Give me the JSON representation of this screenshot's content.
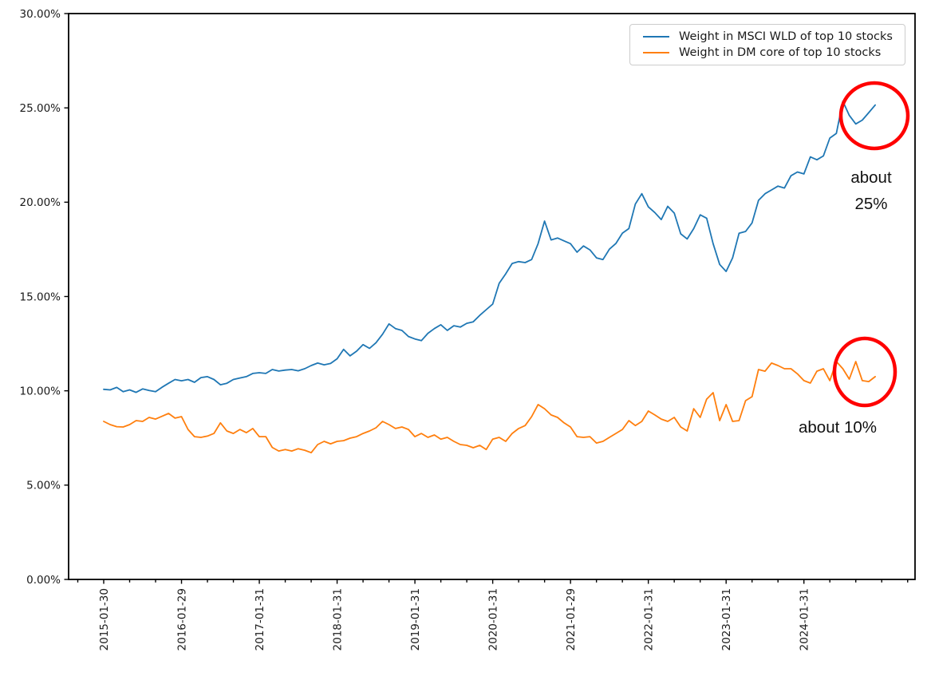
{
  "chart_data": {
    "type": "line",
    "title": "",
    "xlabel": "",
    "ylabel": "",
    "ylim": [
      0,
      30
    ],
    "grid": false,
    "legend_position": "upper right",
    "y_tick_labels": [
      "0.00%",
      "5.00%",
      "10.00%",
      "15.00%",
      "20.00%",
      "25.00%",
      "30.00%"
    ],
    "x_tick_labels": [
      "2015-01-30",
      "2016-01-29",
      "2017-01-31",
      "2018-01-31",
      "2019-01-31",
      "2020-01-31",
      "2021-01-29",
      "2022-01-31",
      "2023-01-31",
      "2024-01-31"
    ],
    "months": [
      "2015-01",
      "2015-02",
      "2015-03",
      "2015-04",
      "2015-05",
      "2015-06",
      "2015-07",
      "2015-08",
      "2015-09",
      "2015-10",
      "2015-11",
      "2015-12",
      "2016-01",
      "2016-02",
      "2016-03",
      "2016-04",
      "2016-05",
      "2016-06",
      "2016-07",
      "2016-08",
      "2016-09",
      "2016-10",
      "2016-11",
      "2016-12",
      "2017-01",
      "2017-02",
      "2017-03",
      "2017-04",
      "2017-05",
      "2017-06",
      "2017-07",
      "2017-08",
      "2017-09",
      "2017-10",
      "2017-11",
      "2017-12",
      "2018-01",
      "2018-02",
      "2018-03",
      "2018-04",
      "2018-05",
      "2018-06",
      "2018-07",
      "2018-08",
      "2018-09",
      "2018-10",
      "2018-11",
      "2018-12",
      "2019-01",
      "2019-02",
      "2019-03",
      "2019-04",
      "2019-05",
      "2019-06",
      "2019-07",
      "2019-08",
      "2019-09",
      "2019-10",
      "2019-11",
      "2019-12",
      "2020-01",
      "2020-02",
      "2020-03",
      "2020-04",
      "2020-05",
      "2020-06",
      "2020-07",
      "2020-08",
      "2020-09",
      "2020-10",
      "2020-11",
      "2020-12",
      "2021-01",
      "2021-02",
      "2021-03",
      "2021-04",
      "2021-05",
      "2021-06",
      "2021-07",
      "2021-08",
      "2021-09",
      "2021-10",
      "2021-11",
      "2021-12",
      "2022-01",
      "2022-02",
      "2022-03",
      "2022-04",
      "2022-05",
      "2022-06",
      "2022-07",
      "2022-08",
      "2022-09",
      "2022-10",
      "2022-11",
      "2022-12",
      "2023-01",
      "2023-02",
      "2023-03",
      "2023-04",
      "2023-05",
      "2023-06",
      "2023-07",
      "2023-08",
      "2023-09",
      "2023-10",
      "2023-11",
      "2023-12",
      "2024-01",
      "2024-02",
      "2024-03",
      "2024-04",
      "2024-05",
      "2024-06",
      "2024-07",
      "2024-08",
      "2024-09",
      "2024-10",
      "2024-11",
      "2024-12"
    ],
    "series": [
      {
        "name": "Weight in MSCI WLD of top 10 stocks",
        "color": "#1f77b4",
        "values": [
          10.08,
          10.05,
          10.18,
          9.95,
          10.05,
          9.92,
          10.1,
          10.02,
          9.95,
          10.19,
          10.4,
          10.6,
          10.53,
          10.6,
          10.45,
          10.7,
          10.75,
          10.6,
          10.32,
          10.4,
          10.6,
          10.68,
          10.75,
          10.92,
          10.96,
          10.92,
          11.13,
          11.05,
          11.1,
          11.13,
          11.06,
          11.17,
          11.34,
          11.47,
          11.38,
          11.45,
          11.7,
          12.2,
          11.85,
          12.1,
          12.45,
          12.25,
          12.55,
          13.0,
          13.55,
          13.3,
          13.2,
          12.88,
          12.75,
          12.66,
          13.05,
          13.3,
          13.5,
          13.2,
          13.45,
          13.38,
          13.58,
          13.66,
          14.0,
          14.3,
          14.6,
          15.7,
          16.2,
          16.75,
          16.85,
          16.8,
          16.96,
          17.8,
          19.0,
          18.0,
          18.1,
          17.95,
          17.8,
          17.35,
          17.68,
          17.47,
          17.05,
          16.96,
          17.51,
          17.81,
          18.36,
          18.6,
          19.9,
          20.45,
          19.75,
          19.45,
          19.08,
          19.78,
          19.42,
          18.32,
          18.05,
          18.6,
          19.33,
          19.15,
          17.8,
          16.7,
          16.33,
          17.05,
          18.35,
          18.45,
          18.9,
          20.1,
          20.45,
          20.65,
          20.85,
          20.75,
          21.4,
          21.6,
          21.5,
          22.4,
          22.25,
          22.45,
          23.4,
          23.65,
          25.35,
          24.6,
          24.15,
          24.35,
          24.75,
          25.15
        ]
      },
      {
        "name": "Weight in DM core of top 10 stocks",
        "color": "#ff7f0e",
        "values": [
          8.38,
          8.21,
          8.1,
          8.08,
          8.21,
          8.42,
          8.38,
          8.59,
          8.5,
          8.65,
          8.8,
          8.55,
          8.63,
          7.95,
          7.57,
          7.53,
          7.6,
          7.74,
          8.3,
          7.87,
          7.74,
          7.95,
          7.78,
          8.0,
          7.57,
          7.57,
          7.0,
          6.81,
          6.89,
          6.81,
          6.93,
          6.85,
          6.72,
          7.15,
          7.32,
          7.19,
          7.32,
          7.36,
          7.49,
          7.57,
          7.74,
          7.87,
          8.04,
          8.38,
          8.21,
          8.0,
          8.08,
          7.95,
          7.57,
          7.74,
          7.53,
          7.66,
          7.44,
          7.53,
          7.32,
          7.15,
          7.11,
          6.98,
          7.11,
          6.89,
          7.44,
          7.53,
          7.32,
          7.74,
          8.0,
          8.16,
          8.63,
          9.27,
          9.05,
          8.72,
          8.59,
          8.3,
          8.08,
          7.57,
          7.53,
          7.57,
          7.23,
          7.32,
          7.53,
          7.74,
          7.95,
          8.42,
          8.16,
          8.38,
          8.93,
          8.72,
          8.5,
          8.38,
          8.59,
          8.08,
          7.87,
          9.05,
          8.59,
          9.56,
          9.9,
          8.42,
          9.27,
          8.38,
          8.42,
          9.48,
          9.69,
          11.13,
          11.04,
          11.47,
          11.34,
          11.17,
          11.17,
          10.9,
          10.54,
          10.41,
          11.04,
          11.17,
          10.54,
          11.55,
          11.17,
          10.62,
          11.55,
          10.54,
          10.49,
          10.75
        ]
      }
    ]
  },
  "annotations": [
    {
      "lines": [
        "about",
        "25%"
      ],
      "circle_color": "#ff0000"
    },
    {
      "lines": [
        "about 10%"
      ],
      "circle_color": "#ff0000"
    }
  ]
}
